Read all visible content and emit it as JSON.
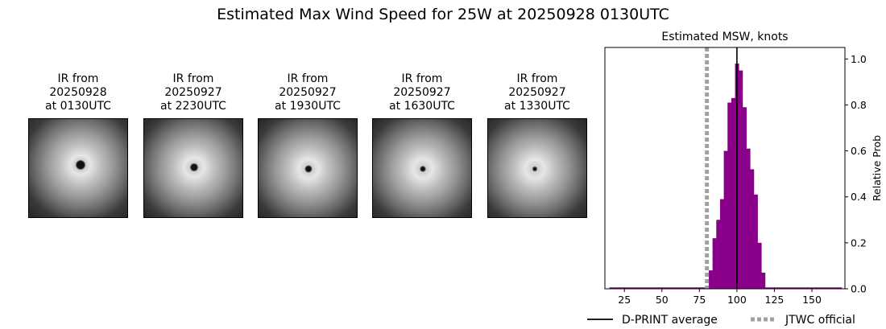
{
  "title": "Estimated Max Wind Speed for 25W at 20250928 0130UTC",
  "panels": [
    {
      "line1": "IR from",
      "line2": "20250928",
      "line3": "at 0130UTC"
    },
    {
      "line1": "IR from",
      "line2": "20250927",
      "line3": "at 2230UTC"
    },
    {
      "line1": "IR from",
      "line2": "20250927",
      "line3": "at 1930UTC"
    },
    {
      "line1": "IR from",
      "line2": "20250927",
      "line3": "at 1630UTC"
    },
    {
      "line1": "IR from",
      "line2": "20250927",
      "line3": "at 1330UTC"
    }
  ],
  "chart_data": {
    "type": "bar",
    "title": "Estimated MSW, knots",
    "xlabel": "",
    "ylabel": "Relative Prob",
    "xlim": [
      12,
      172
    ],
    "ylim": [
      0,
      1.05
    ],
    "xticks": [
      25,
      50,
      75,
      100,
      125,
      150
    ],
    "yticks": [
      0.0,
      0.2,
      0.4,
      0.6,
      0.8,
      1.0
    ],
    "ytick_labels": [
      "0.0",
      "0.2",
      "0.4",
      "0.6",
      "0.8",
      "1.0"
    ],
    "y_axis_side": "right",
    "bar_color": "#8b008b",
    "bin_width": 2.5,
    "bins": [
      {
        "x": 82.5,
        "value": 0.08
      },
      {
        "x": 85.0,
        "value": 0.22
      },
      {
        "x": 87.5,
        "value": 0.3
      },
      {
        "x": 90.0,
        "value": 0.39
      },
      {
        "x": 92.5,
        "value": 0.6
      },
      {
        "x": 95.0,
        "value": 0.81
      },
      {
        "x": 97.5,
        "value": 0.83
      },
      {
        "x": 100.0,
        "value": 0.98
      },
      {
        "x": 102.5,
        "value": 0.95
      },
      {
        "x": 105.0,
        "value": 0.79
      },
      {
        "x": 107.5,
        "value": 0.61
      },
      {
        "x": 110.0,
        "value": 0.52
      },
      {
        "x": 112.5,
        "value": 0.41
      },
      {
        "x": 115.0,
        "value": 0.2
      },
      {
        "x": 117.5,
        "value": 0.07
      }
    ],
    "baseline": {
      "from": 15,
      "to": 170
    },
    "dprint_average": 100,
    "jtwc_official": 80,
    "legend": [
      {
        "label": "D-PRINT average",
        "color": "#000000",
        "style": "solid"
      },
      {
        "label": "JTWC official",
        "color": "#a0a0a0",
        "style": "dotted"
      }
    ],
    "legend_position": "bottom",
    "grid": false
  }
}
